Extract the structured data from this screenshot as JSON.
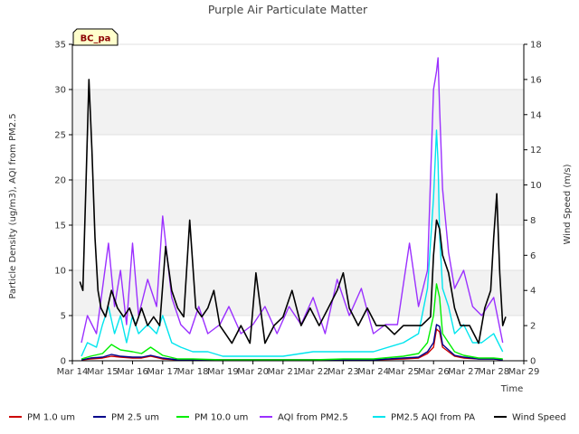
{
  "chart_data": {
    "type": "line",
    "title": "Purple Air Particulate Matter",
    "site_label": "BC_pa",
    "xlabel": "Time",
    "ylabel": "Particle Density (ug/m3), AQI from PM2.5",
    "y2label": "Wind Speed (m/s)",
    "x_ticks": [
      "Mar 14",
      "Mar 15",
      "Mar 16",
      "Mar 17",
      "Mar 18",
      "Mar 19",
      "Mar 20",
      "Mar 21",
      "Mar 22",
      "Mar 23",
      "Mar 24",
      "Mar 25",
      "Mar 26",
      "Mar 27",
      "Mar 28",
      "Mar 29"
    ],
    "xlim_days": [
      14,
      29
    ],
    "ylim": [
      0,
      35
    ],
    "y_ticks": [
      0,
      5,
      10,
      15,
      20,
      25,
      30,
      35
    ],
    "y2lim": [
      0,
      18
    ],
    "y2_ticks": [
      0,
      2,
      4,
      6,
      8,
      10,
      12,
      14,
      16,
      18
    ],
    "grid": "horizontal bands",
    "legend_position": "bottom",
    "series": [
      {
        "name": "PM 1.0 um",
        "color": "#cc0000",
        "axis": "left",
        "x": [
          14.3,
          14.6,
          15.0,
          15.3,
          15.6,
          16.0,
          16.3,
          16.6,
          17.0,
          17.5,
          18.0,
          19.0,
          20.0,
          21.0,
          22.0,
          23.0,
          24.0,
          25.0,
          25.5,
          25.8,
          26.0,
          26.1,
          26.2,
          26.3,
          26.5,
          26.7,
          27.0,
          27.5,
          28.0,
          28.3
        ],
        "values": [
          0.1,
          0.2,
          0.3,
          0.5,
          0.4,
          0.3,
          0.3,
          0.5,
          0.2,
          0.1,
          0.1,
          0.1,
          0.1,
          0.1,
          0.1,
          0.1,
          0.1,
          0.2,
          0.3,
          0.8,
          1.5,
          3.5,
          3.2,
          1.5,
          1.0,
          0.5,
          0.3,
          0.2,
          0.2,
          0.1
        ]
      },
      {
        "name": "PM 2.5 um",
        "color": "#00008b",
        "axis": "left",
        "x": [
          14.3,
          14.6,
          15.0,
          15.3,
          15.6,
          16.0,
          16.3,
          16.6,
          17.0,
          17.5,
          18.0,
          19.0,
          20.0,
          21.0,
          22.0,
          23.0,
          24.0,
          25.0,
          25.5,
          25.8,
          26.0,
          26.1,
          26.2,
          26.3,
          26.5,
          26.7,
          27.0,
          27.5,
          28.0,
          28.3
        ],
        "values": [
          0.1,
          0.3,
          0.4,
          0.7,
          0.5,
          0.4,
          0.4,
          0.6,
          0.3,
          0.1,
          0.1,
          0.1,
          0.1,
          0.1,
          0.1,
          0.1,
          0.1,
          0.3,
          0.4,
          1.0,
          2.0,
          4.0,
          3.8,
          1.8,
          1.2,
          0.6,
          0.4,
          0.2,
          0.2,
          0.1
        ]
      },
      {
        "name": "PM 10.0 um",
        "color": "#00ee00",
        "axis": "left",
        "x": [
          14.3,
          14.6,
          15.0,
          15.3,
          15.6,
          16.0,
          16.3,
          16.6,
          17.0,
          17.5,
          18.0,
          19.0,
          20.0,
          21.0,
          22.0,
          23.0,
          24.0,
          25.0,
          25.5,
          25.8,
          26.0,
          26.1,
          26.2,
          26.3,
          26.5,
          26.7,
          27.0,
          27.5,
          28.0,
          28.3
        ],
        "values": [
          0.2,
          0.5,
          0.8,
          1.8,
          1.2,
          1.0,
          0.8,
          1.5,
          0.6,
          0.2,
          0.2,
          0.1,
          0.1,
          0.1,
          0.1,
          0.2,
          0.2,
          0.5,
          0.8,
          2.0,
          5.0,
          8.5,
          7.0,
          3.0,
          2.0,
          1.0,
          0.6,
          0.3,
          0.3,
          0.2
        ]
      },
      {
        "name": "AQI from PM2.5",
        "color": "#9b30ff",
        "axis": "left",
        "x": [
          14.3,
          14.5,
          14.8,
          15.0,
          15.2,
          15.4,
          15.6,
          15.8,
          16.0,
          16.2,
          16.5,
          16.8,
          17.0,
          17.3,
          17.6,
          17.9,
          18.2,
          18.5,
          18.9,
          19.2,
          19.6,
          20.0,
          20.4,
          20.8,
          21.2,
          21.6,
          22.0,
          22.4,
          22.8,
          23.2,
          23.6,
          24.0,
          24.4,
          24.8,
          25.2,
          25.5,
          25.8,
          26.0,
          26.1,
          26.15,
          26.2,
          26.3,
          26.5,
          26.7,
          27.0,
          27.3,
          27.6,
          28.0,
          28.3
        ],
        "values": [
          2,
          5,
          3,
          8,
          13,
          6,
          10,
          4,
          13,
          5,
          9,
          6,
          16,
          7,
          4,
          3,
          6,
          3,
          4,
          6,
          3,
          4,
          6,
          3,
          6,
          4,
          7,
          3,
          9,
          5,
          8,
          3,
          4,
          4,
          13,
          6,
          10,
          30,
          32,
          33.5,
          28,
          19,
          12,
          8,
          10,
          6,
          5,
          7,
          2
        ]
      },
      {
        "name": "PM2.5 AQI from PA",
        "color": "#00e5ee",
        "axis": "left",
        "x": [
          14.3,
          14.5,
          14.8,
          15.0,
          15.2,
          15.4,
          15.6,
          15.8,
          16.0,
          16.2,
          16.5,
          16.8,
          17.0,
          17.3,
          17.6,
          18.0,
          18.5,
          19.0,
          20.0,
          21.0,
          22.0,
          23.0,
          24.0,
          25.0,
          25.5,
          25.8,
          26.0,
          26.1,
          26.15,
          26.2,
          26.3,
          26.5,
          26.7,
          27.0,
          27.3,
          27.6,
          28.0,
          28.3
        ],
        "values": [
          0.5,
          2,
          1.5,
          4,
          6,
          3,
          5,
          2,
          5,
          3,
          4,
          3,
          5,
          2,
          1.5,
          1,
          1,
          0.5,
          0.5,
          0.5,
          1,
          1,
          1,
          2,
          3,
          8,
          18,
          25.5,
          22,
          14,
          8,
          6,
          3,
          4,
          2,
          2,
          3,
          1
        ]
      },
      {
        "name": "Wind Speed",
        "color": "#000000",
        "axis": "right",
        "x": [
          14.25,
          14.35,
          14.45,
          14.55,
          14.65,
          14.75,
          14.85,
          14.95,
          15.1,
          15.3,
          15.5,
          15.7,
          15.9,
          16.1,
          16.3,
          16.5,
          16.7,
          16.9,
          17.1,
          17.3,
          17.5,
          17.7,
          17.9,
          18.1,
          18.3,
          18.5,
          18.7,
          18.9,
          19.1,
          19.3,
          19.6,
          19.9,
          20.1,
          20.4,
          20.7,
          21.0,
          21.3,
          21.6,
          21.9,
          22.2,
          22.5,
          22.8,
          23.0,
          23.2,
          23.5,
          23.8,
          24.1,
          24.4,
          24.7,
          25.0,
          25.3,
          25.6,
          25.9,
          26.0,
          26.1,
          26.2,
          26.3,
          26.5,
          26.7,
          26.9,
          27.2,
          27.5,
          27.7,
          27.9,
          28.0,
          28.1,
          28.2,
          28.3,
          28.4
        ],
        "values": [
          4.5,
          4,
          10,
          16,
          12,
          7,
          4,
          3,
          2.5,
          4,
          3,
          2.5,
          3,
          2,
          3,
          2,
          2.5,
          2,
          6.5,
          4,
          3,
          2.5,
          8,
          3,
          2.5,
          3,
          4,
          2,
          1.5,
          1,
          2,
          1,
          5,
          1,
          2,
          2.5,
          4,
          2,
          3,
          2,
          3,
          4,
          5,
          3,
          2,
          3,
          2,
          2,
          1.5,
          2,
          2,
          2,
          2.5,
          6,
          8,
          7.5,
          6,
          5,
          3,
          2,
          2,
          1,
          3,
          4,
          7,
          9.5,
          5,
          2,
          2.5
        ]
      }
    ]
  }
}
